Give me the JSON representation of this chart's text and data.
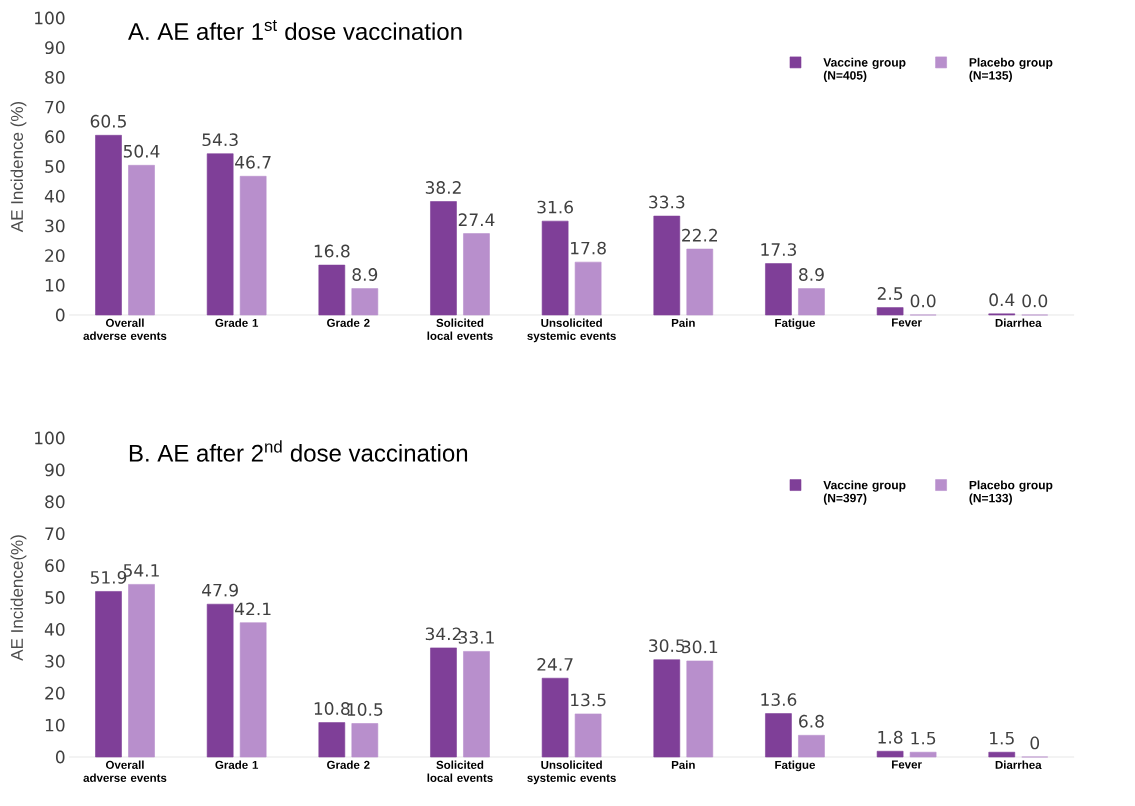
{
  "chart_data": [
    {
      "type": "bar",
      "title": "A. AE after 1$^{st}$ dose vaccination",
      "ylabel": "AE Incidence  (%)",
      "categories": [
        "Overall adverse events",
        "Grade 1",
        "Grade 2",
        "Solicited local events",
        "Unsolicited systemic events",
        "Pain",
        "Fatigue",
        "Fever",
        "Diarrhea"
      ],
      "series": [
        {
          "name": "Vaccine group (N=405)",
          "color": "#7f3f98",
          "values": [
            60.5,
            54.3,
            16.8,
            38.2,
            31.6,
            33.3,
            17.3,
            2.5,
            0.4
          ],
          "value_labels": [
            "60.5",
            "54.3",
            "16.8",
            "38.2",
            "31.6",
            "33.3",
            "17.3",
            "2.5",
            "0.4"
          ]
        },
        {
          "name": "Placebo group (N=135)",
          "color": "#b88fcc",
          "values": [
            50.4,
            46.7,
            8.9,
            27.4,
            17.8,
            22.2,
            8.9,
            0.0,
            0.0
          ],
          "value_labels": [
            "50.4",
            "46.7",
            "8.9",
            "27.4",
            "17.8",
            "22.2",
            "8.9",
            "0.0",
            "0.0"
          ]
        }
      ],
      "ylim": [
        0,
        100
      ],
      "yticks": [
        0,
        10,
        20,
        30,
        40,
        50,
        60,
        70,
        80,
        90,
        100
      ],
      "legend": "top right"
    },
    {
      "type": "bar",
      "title": "B. AE after 2$^{nd}$ dose vaccination",
      "ylabel": "AE Incidence(%)",
      "categories": [
        "Overall adverse events",
        "Grade 1",
        "Grade 2",
        "Solicited local events",
        "Unsolicited systemic events",
        "Pain",
        "Fatigue",
        "Fever",
        "Diarrhea"
      ],
      "series": [
        {
          "name": "Vaccine group (N=397)",
          "color": "#7f3f98",
          "values": [
            51.9,
            47.9,
            10.8,
            34.2,
            24.7,
            30.5,
            13.6,
            1.8,
            1.5
          ],
          "value_labels": [
            "51.9",
            "47.9",
            "10.8",
            "34.2",
            "24.7",
            "30.5",
            "13.6",
            "1.8",
            "1.5"
          ]
        },
        {
          "name": "Placebo group (N=133)",
          "color": "#b88fcc",
          "values": [
            54.1,
            42.1,
            10.5,
            33.1,
            13.5,
            30.1,
            6.8,
            1.5,
            0
          ],
          "value_labels": [
            "54.1",
            "42.1",
            "10.5",
            "33.1",
            "13.5",
            "30.1",
            "6.8",
            "1.5",
            "0"
          ]
        }
      ],
      "ylim": [
        0,
        100
      ],
      "yticks": [
        0,
        10,
        20,
        30,
        40,
        50,
        60,
        70,
        80,
        90,
        100
      ],
      "legend": "top right"
    }
  ]
}
